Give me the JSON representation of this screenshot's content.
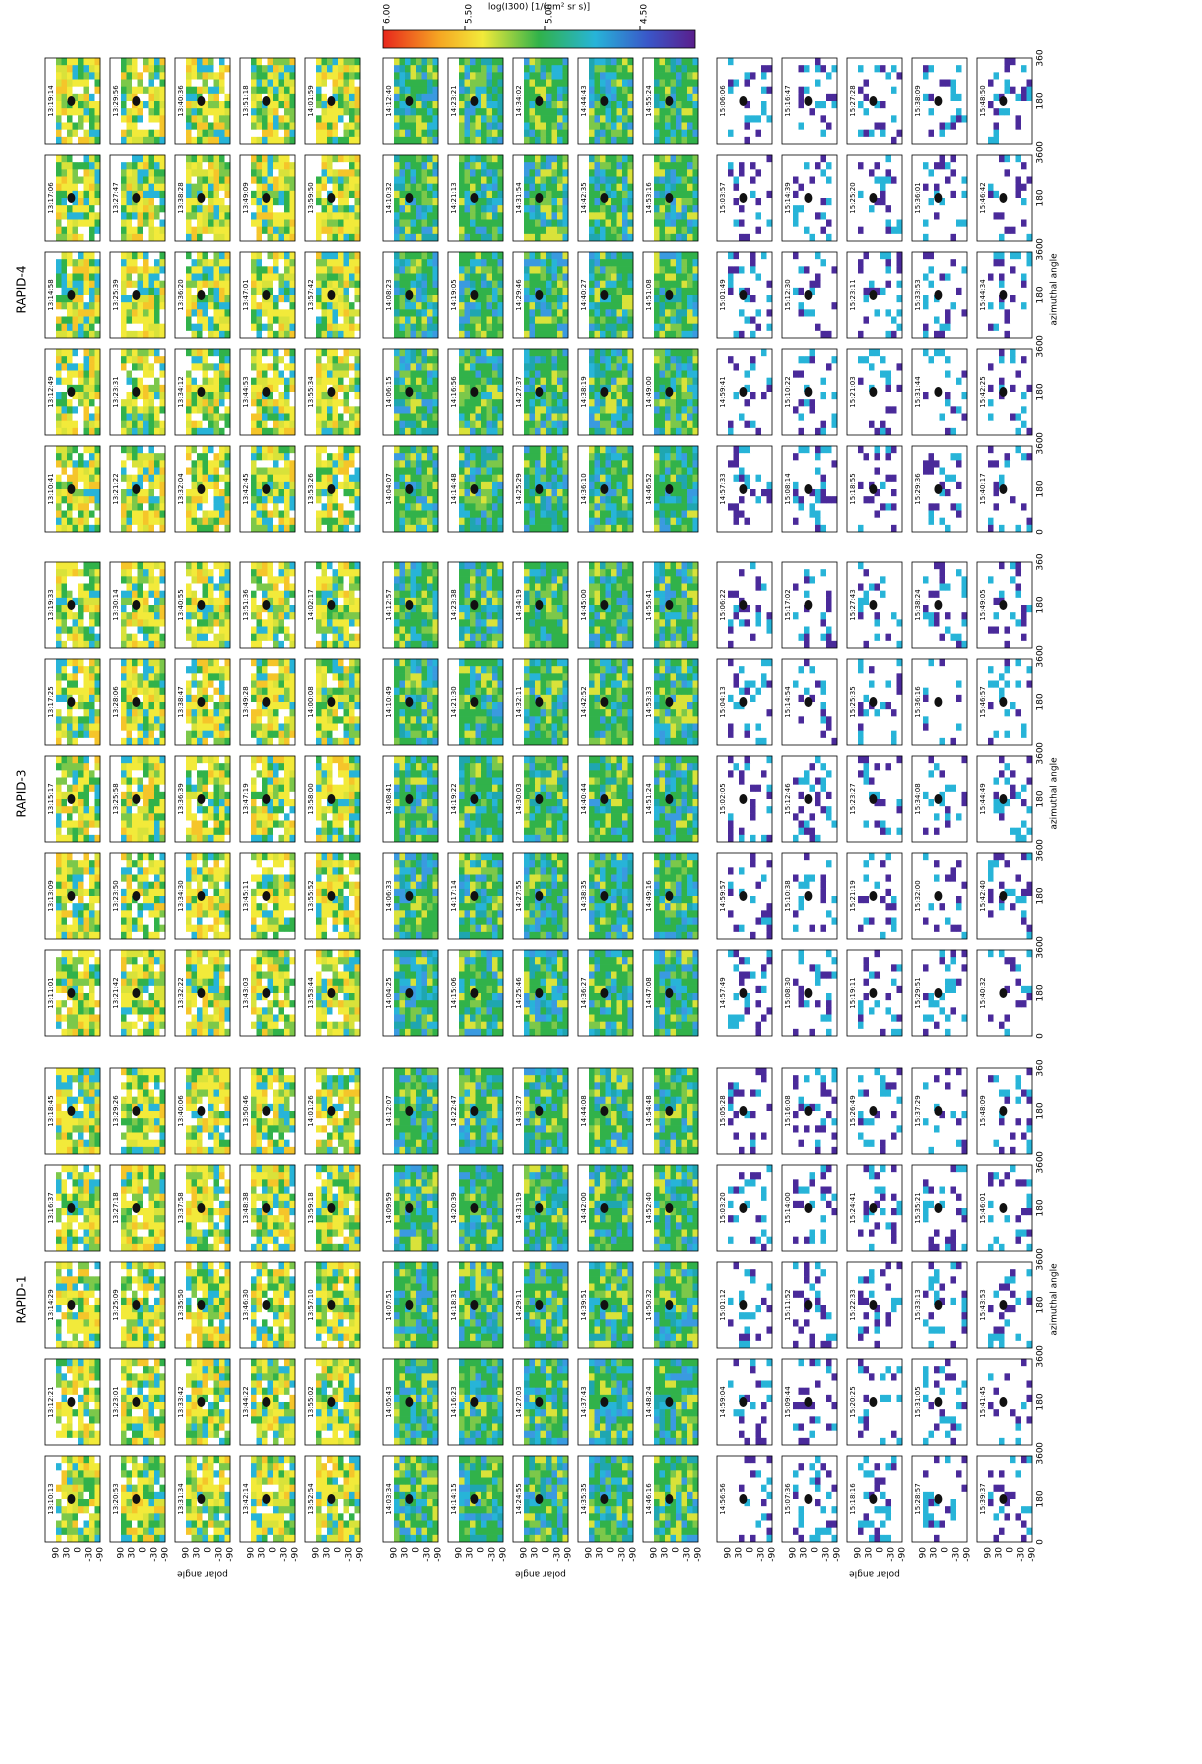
{
  "figure": {
    "spacecraft": [
      {
        "title": "RAPID-1",
        "times": [
          [
            "13:10:13",
            "13:12:21",
            "13:14:29",
            "13:16:37",
            "13:18:45"
          ],
          [
            "13:20:53",
            "13:23:01",
            "13:25:09",
            "13:27:18",
            "13:29:26"
          ],
          [
            "13:31:34",
            "13:33:42",
            "13:35:50",
            "13:37:58",
            "13:40:06"
          ],
          [
            "13:42:14",
            "13:44:22",
            "13:46:30",
            "13:48:38",
            "13:50:46"
          ],
          [
            "13:52:54",
            "13:55:02",
            "13:57:10",
            "13:59:18",
            "14:01:26"
          ],
          [
            "14:03:34",
            "14:05:43",
            "14:07:51",
            "14:09:59",
            "14:12:07"
          ],
          [
            "14:14:15",
            "14:16:23",
            "14:18:31",
            "14:20:39",
            "14:22:47"
          ],
          [
            "14:24:55",
            "14:27:03",
            "14:29:11",
            "14:31:19",
            "14:33:27"
          ],
          [
            "14:35:35",
            "14:37:43",
            "14:39:51",
            "14:42:00",
            "14:44:08"
          ],
          [
            "14:46:16",
            "14:48:24",
            "14:50:32",
            "14:52:40",
            "14:54:48"
          ],
          [
            "14:56:56",
            "14:59:04",
            "15:01:12",
            "15:03:20",
            "15:05:28"
          ],
          [
            "15:07:36",
            "15:09:44",
            "15:11:52",
            "15:14:00",
            "15:16:08"
          ],
          [
            "15:18:16",
            "15:20:25",
            "15:22:33",
            "15:24:41",
            "15:26:49"
          ],
          [
            "15:28:57",
            "15:31:05",
            "15:33:13",
            "15:35:21",
            "15:37:29"
          ],
          [
            "15:39:37",
            "15:41:45",
            "15:43:53",
            "15:46:01",
            "15:48:09"
          ]
        ]
      },
      {
        "title": "RAPID-3",
        "times": [
          [
            "13:11:01",
            "13:13:09",
            "13:15:17",
            "13:17:25",
            "13:19:33"
          ],
          [
            "13:21:42",
            "13:23:50",
            "13:25:58",
            "13:28:06",
            "13:30:14"
          ],
          [
            "13:32:22",
            "13:34:30",
            "13:36:39",
            "13:38:47",
            "13:40:55"
          ],
          [
            "13:43:03",
            "13:45:11",
            "13:47:19",
            "13:49:28",
            "13:51:36"
          ],
          [
            "13:53:44",
            "13:55:52",
            "13:58:00",
            "14:00:08",
            "14:02:17"
          ],
          [
            "14:04:25",
            "14:06:33",
            "14:08:41",
            "14:10:49",
            "14:12:57"
          ],
          [
            "14:15:06",
            "14:17:14",
            "14:19:22",
            "14:21:30",
            "14:23:38"
          ],
          [
            "14:25:46",
            "14:27:55",
            "14:30:03",
            "14:32:11",
            "14:34:19"
          ],
          [
            "14:36:27",
            "14:38:35",
            "14:40:44",
            "14:42:52",
            "14:45:00"
          ],
          [
            "14:47:08",
            "14:49:16",
            "14:51:24",
            "14:53:33",
            "14:55:41"
          ],
          [
            "14:57:49",
            "14:59:57",
            "15:02:05",
            "15:04:13",
            "15:06:22"
          ],
          [
            "15:08:30",
            "15:10:38",
            "15:12:46",
            "15:14:54",
            "15:17:02"
          ],
          [
            "15:19:11",
            "15:21:19",
            "15:23:27",
            "15:25:35",
            "15:27:43"
          ],
          [
            "15:29:51",
            "15:32:00",
            "15:34:08",
            "15:36:16",
            "15:38:24"
          ],
          [
            "15:40:32",
            "15:42:40",
            "15:44:49",
            "15:46:57",
            "15:49:05"
          ]
        ]
      },
      {
        "title": "RAPID-4",
        "times": [
          [
            "13:10:41",
            "13:12:49",
            "13:14:58",
            "13:17:06",
            "13:19:14"
          ],
          [
            "13:21:22",
            "13:23:31",
            "13:25:39",
            "13:27:47",
            "13:29:56"
          ],
          [
            "13:32:04",
            "13:34:12",
            "13:36:20",
            "13:38:28",
            "13:40:36"
          ],
          [
            "13:42:45",
            "13:44:53",
            "13:47:01",
            "13:49:09",
            "13:51:18"
          ],
          [
            "13:53:26",
            "13:55:34",
            "13:57:42",
            "13:59:50",
            "14:01:59"
          ],
          [
            "14:04:07",
            "14:06:15",
            "14:08:23",
            "14:10:32",
            "14:12:40"
          ],
          [
            "14:14:48",
            "14:16:56",
            "14:19:05",
            "14:21:13",
            "14:23:21"
          ],
          [
            "14:25:29",
            "14:27:37",
            "14:29:46",
            "14:31:54",
            "14:34:02"
          ],
          [
            "14:36:10",
            "14:38:19",
            "14:40:27",
            "14:42:35",
            "14:44:43"
          ],
          [
            "14:46:52",
            "14:49:00",
            "14:51:08",
            "14:53:16",
            "14:55:24"
          ],
          [
            "14:57:33",
            "14:59:41",
            "15:01:49",
            "15:03:57",
            "15:06:06"
          ],
          [
            "15:08:14",
            "15:10:22",
            "15:12:30",
            "15:14:39",
            "15:16:47"
          ],
          [
            "15:18:55",
            "15:21:03",
            "15:23:11",
            "15:25:20",
            "15:27:28"
          ],
          [
            "15:29:36",
            "15:31:44",
            "15:33:53",
            "15:36:01",
            "15:38:09"
          ],
          [
            "15:40:17",
            "15:42:25",
            "15:44:34",
            "15:46:42",
            "15:48:50"
          ]
        ]
      }
    ],
    "colorbar": {
      "label": "log(I300) [1/(cm² sr s)]",
      "ticks": [
        "6.00",
        "5.50",
        "5.00",
        "4.50"
      ]
    },
    "x_axis": {
      "label": "azimuthal angle",
      "ticks": [
        "0",
        "180",
        "360"
      ]
    },
    "y_axis": {
      "label": "polar angle",
      "ticks": [
        "90",
        "30",
        "0",
        "-30",
        "-90"
      ]
    }
  }
}
